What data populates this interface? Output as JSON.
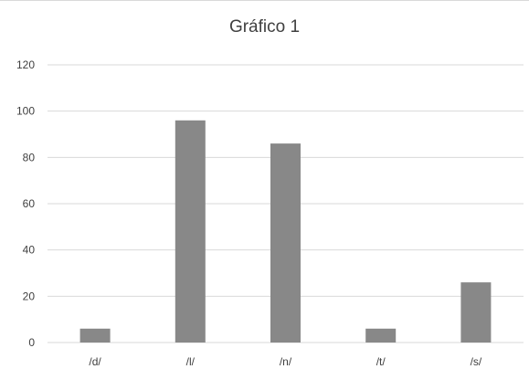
{
  "chart_data": {
    "type": "bar",
    "title": "Gráfico 1",
    "categories": [
      "/d/",
      "/l/",
      "/n/",
      "/t/",
      "/s/"
    ],
    "values": [
      6,
      96,
      86,
      6,
      26
    ],
    "ylim": [
      0,
      120
    ],
    "yticks": [
      0,
      20,
      40,
      60,
      80,
      100,
      120
    ],
    "xlabel": "",
    "ylabel": "",
    "grid": true,
    "bar_color": "#888888",
    "grid_color": "#d9d9d9"
  }
}
